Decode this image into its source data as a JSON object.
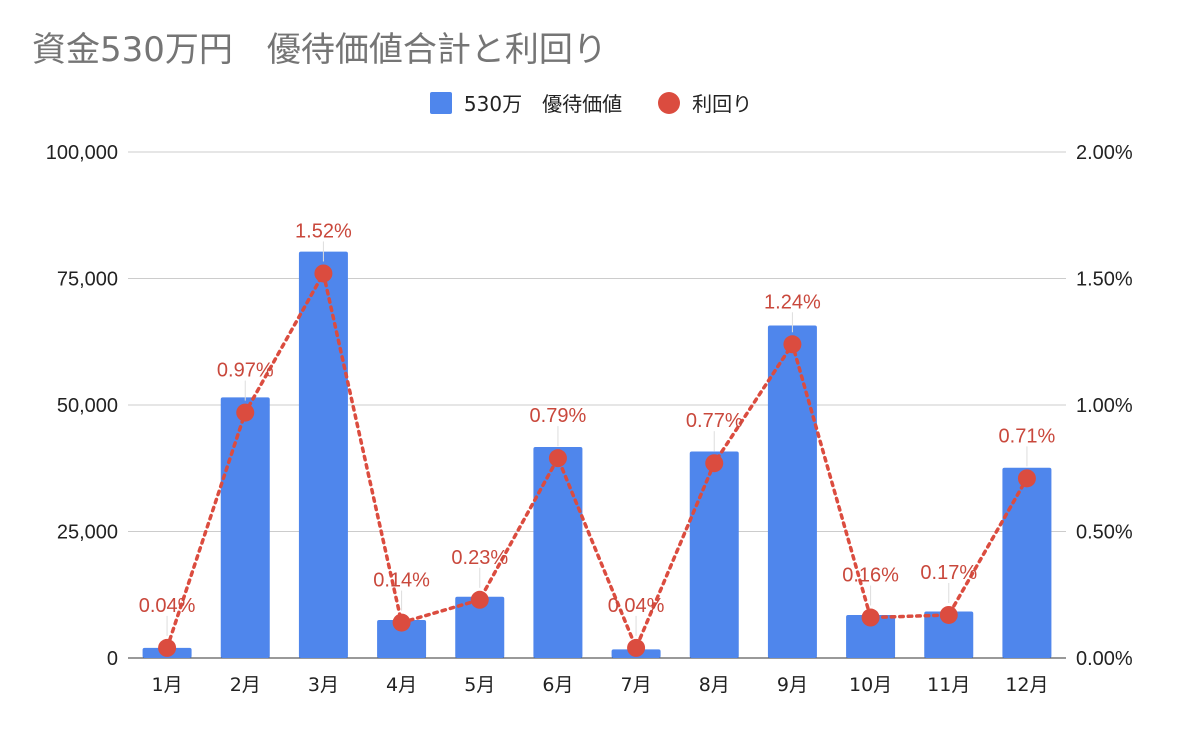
{
  "chart_data": {
    "type": "bar",
    "title": "資金530万円　優待価値合計と利回り",
    "categories": [
      "1月",
      "2月",
      "3月",
      "4月",
      "5月",
      "6月",
      "7月",
      "8月",
      "9月",
      "10月",
      "11月",
      "12月"
    ],
    "series": [
      {
        "name": "530万　優待価値",
        "type": "bar",
        "axis": "left",
        "color": "#4f86ec",
        "values": [
          2000,
          51500,
          80300,
          7500,
          12100,
          41700,
          1700,
          40800,
          65700,
          8500,
          9200,
          37600
        ]
      },
      {
        "name": "利回り",
        "type": "line",
        "style": "dotted-with-markers",
        "axis": "right",
        "color": "#db4c3f",
        "values": [
          0.04,
          0.97,
          1.52,
          0.14,
          0.23,
          0.79,
          0.04,
          0.77,
          1.24,
          0.16,
          0.17,
          0.71
        ],
        "labels": [
          "0.04%",
          "0.97%",
          "1.52%",
          "0.14%",
          "0.23%",
          "0.79%",
          "0.04%",
          "0.77%",
          "1.24%",
          "0.16%",
          "0.17%",
          "0.71%"
        ]
      }
    ],
    "ylim": [
      0,
      100000
    ],
    "y_ticks": [
      "0",
      "25,000",
      "50,000",
      "75,000",
      "100,000"
    ],
    "y2lim": [
      0,
      2.0
    ],
    "y2_ticks": [
      "0.00%",
      "0.50%",
      "1.00%",
      "1.50%",
      "2.00%"
    ],
    "grid": true,
    "legend_position": "top"
  }
}
